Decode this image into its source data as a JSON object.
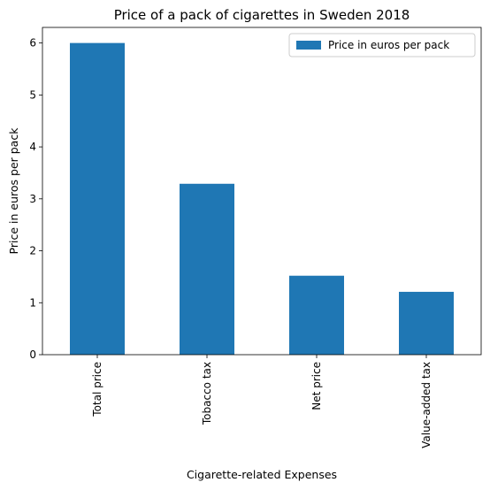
{
  "chart_data": {
    "type": "bar",
    "title": "Price of a pack of cigarettes in Sweden 2018",
    "xlabel": "Cigarette-related Expenses",
    "ylabel": "Price in euros per pack",
    "categories": [
      "Total price",
      "Tobacco tax",
      "Net price",
      "Value-added tax"
    ],
    "series": [
      {
        "name": "Price in euros per pack",
        "values": [
          6.0,
          3.29,
          1.52,
          1.21
        ]
      }
    ],
    "ylim": [
      0,
      6.3
    ],
    "yticks": [
      0,
      1,
      2,
      3,
      4,
      5,
      6
    ],
    "grid": false,
    "legend": "top-right",
    "colors": {
      "bar": "#1f77b4",
      "axis": "#000000",
      "legend_border": "#cccccc"
    }
  }
}
